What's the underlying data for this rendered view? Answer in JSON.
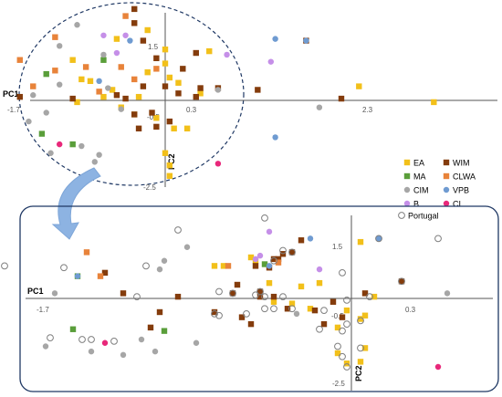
{
  "colors": {
    "EA": "#f2c01a",
    "WIM": "#843c0c",
    "MA": "#5a9e3a",
    "CLWA": "#e8833a",
    "CIM": "#a6a6a6",
    "VPB": "#6f9bd1",
    "B": "#c58fe8",
    "CI": "#e8287a",
    "Portugal": "#7f7f7f",
    "frame": "#1f3864",
    "arrow": "#8db3e2"
  },
  "chart_data": [
    {
      "type": "scatter",
      "xlabel": "PC1",
      "ylabel": "PC2",
      "x_ticks": [
        "-1.7",
        "0.3",
        "2.3"
      ],
      "y_ticks": [
        "1.5",
        "-0.5",
        "-2.5"
      ],
      "legend": {
        "position": "right",
        "entries": [
          {
            "key": "EA",
            "label": "EA",
            "shape": "square"
          },
          {
            "key": "WIM",
            "label": "WIM",
            "shape": "square"
          },
          {
            "key": "MA",
            "label": "MA",
            "shape": "square"
          },
          {
            "key": "CLWA",
            "label": "CLWA",
            "shape": "square"
          },
          {
            "key": "CIM",
            "label": "CIM",
            "shape": "circle"
          },
          {
            "key": "VPB",
            "label": "VPB",
            "shape": "circle"
          },
          {
            "key": "B",
            "label": "B",
            "shape": "circle"
          },
          {
            "key": "CI",
            "label": "CI",
            "shape": "circle"
          }
        ]
      },
      "series": [
        {
          "name": "EA",
          "shape": "square",
          "points": [
            [
              -0.2,
              2.0
            ],
            [
              -0.55,
              1.75
            ],
            [
              0.0,
              1.45
            ],
            [
              0.5,
              1.4
            ],
            [
              -1.05,
              1.15
            ],
            [
              -0.95,
              0.6
            ],
            [
              -0.85,
              0.55
            ],
            [
              -0.6,
              0.3
            ],
            [
              0.05,
              0.65
            ],
            [
              -0.3,
              0.1
            ],
            [
              0.4,
              0.2
            ],
            [
              -1.0,
              -0.05
            ],
            [
              -0.7,
              0.1
            ],
            [
              -0.5,
              -0.2
            ],
            [
              2.2,
              0.4
            ],
            [
              3.05,
              -0.05
            ],
            [
              -0.1,
              -0.5
            ],
            [
              0.0,
              -1.5
            ],
            [
              0.05,
              -1.85
            ],
            [
              0.05,
              -2.15
            ],
            [
              0.1,
              -0.8
            ],
            [
              0.0,
              1.05
            ],
            [
              -0.2,
              0.8
            ],
            [
              0.15,
              0.5
            ],
            [
              -0.35,
              -0.4
            ],
            [
              0.25,
              -0.8
            ]
          ]
        },
        {
          "name": "WIM",
          "shape": "square",
          "points": [
            [
              -0.35,
              2.6
            ],
            [
              -0.35,
              2.2
            ],
            [
              -0.25,
              1.7
            ],
            [
              0.35,
              1.35
            ],
            [
              -0.1,
              1.2
            ],
            [
              0.2,
              0.9
            ],
            [
              1.6,
              1.7
            ],
            [
              -1.65,
              0.1
            ],
            [
              -1.05,
              0.05
            ],
            [
              -0.55,
              0.15
            ],
            [
              -0.45,
              0.05
            ],
            [
              -0.35,
              -0.4
            ],
            [
              -0.15,
              -0.35
            ],
            [
              -0.1,
              -0.75
            ],
            [
              0.05,
              -0.6
            ],
            [
              0.15,
              0.2
            ],
            [
              0.35,
              0.1
            ],
            [
              0.4,
              0.35
            ],
            [
              1.05,
              0.3
            ],
            [
              2.0,
              0.05
            ],
            [
              0.6,
              0.35
            ],
            [
              -0.3,
              -0.8
            ],
            [
              0.0,
              0.4
            ],
            [
              -0.25,
              0.4
            ]
          ]
        },
        {
          "name": "MA",
          "shape": "square",
          "points": [
            [
              -0.7,
              1.15
            ],
            [
              -1.35,
              0.75
            ],
            [
              -1.4,
              -0.95
            ],
            [
              -1.05,
              -1.25
            ]
          ]
        },
        {
          "name": "CLWA",
          "shape": "square",
          "points": [
            [
              -0.45,
              2.4
            ],
            [
              -1.25,
              1.8
            ],
            [
              -1.65,
              1.15
            ],
            [
              -1.25,
              0.85
            ],
            [
              -0.9,
              0.95
            ],
            [
              -0.5,
              0.95
            ],
            [
              -0.1,
              0.9
            ],
            [
              -0.75,
              0.25
            ],
            [
              -1.5,
              0.4
            ],
            [
              -0.35,
              0.6
            ]
          ]
        },
        {
          "name": "CIM",
          "shape": "circle",
          "points": [
            [
              -1.0,
              2.15
            ],
            [
              -1.2,
              1.55
            ],
            [
              -0.7,
              1.3
            ],
            [
              -0.65,
              0.35
            ],
            [
              -1.2,
              0.45
            ],
            [
              -1.5,
              0.15
            ],
            [
              0.6,
              0.3
            ],
            [
              1.75,
              -0.2
            ],
            [
              -0.95,
              -1.3
            ],
            [
              -1.3,
              -1.5
            ],
            [
              -0.8,
              -1.75
            ],
            [
              -0.75,
              -1.55
            ],
            [
              -1.55,
              -0.6
            ],
            [
              -1.35,
              -0.35
            ],
            [
              -0.5,
              -0.25
            ]
          ]
        },
        {
          "name": "VPB",
          "shape": "circle",
          "points": [
            [
              -0.4,
              1.7
            ],
            [
              1.25,
              1.75
            ],
            [
              1.6,
              1.7
            ],
            [
              1.25,
              -1.05
            ],
            [
              -0.75,
              0.55
            ]
          ]
        },
        {
          "name": "B",
          "shape": "circle",
          "points": [
            [
              -0.7,
              1.85
            ],
            [
              -0.45,
              1.85
            ],
            [
              0.7,
              1.3
            ],
            [
              -0.55,
              1.35
            ],
            [
              1.2,
              1.1
            ]
          ]
        },
        {
          "name": "CI",
          "shape": "circle",
          "points": [
            [
              -1.2,
              -1.25
            ],
            [
              0.6,
              -1.8
            ]
          ]
        }
      ]
    },
    {
      "type": "scatter",
      "xlabel": "PC1",
      "ylabel": "PC2",
      "x_ticks": [
        "-1.7",
        "0.3"
      ],
      "y_ticks": [
        "1.5",
        "-0.5",
        "-2.5"
      ],
      "legend": {
        "position": "top-right",
        "entries": [
          {
            "key": "Portugal",
            "label": "Portugal",
            "shape": "open-circle"
          }
        ]
      },
      "series": [
        {
          "name": "EA",
          "shape": "square",
          "points": [
            [
              0.1,
              1.65
            ],
            [
              -1.1,
              1.2
            ],
            [
              -1.05,
              1.1
            ],
            [
              -1.5,
              0.95
            ],
            [
              -1.4,
              0.95
            ],
            [
              -0.35,
              0.45
            ],
            [
              -0.9,
              0.45
            ],
            [
              -0.55,
              0.35
            ],
            [
              -0.65,
              -0.15
            ],
            [
              -0.85,
              -0.1
            ],
            [
              -0.45,
              -0.3
            ],
            [
              -0.05,
              -0.35
            ],
            [
              0.15,
              -0.5
            ],
            [
              0.25,
              0.05
            ],
            [
              -0.15,
              -0.85
            ],
            [
              0.15,
              -1.45
            ],
            [
              -0.05,
              -1.9
            ],
            [
              0.1,
              -1.85
            ],
            [
              -0.15,
              -1.6
            ],
            [
              0.1,
              -0.6
            ]
          ]
        },
        {
          "name": "WIM",
          "shape": "square",
          "points": [
            [
              -0.55,
              1.7
            ],
            [
              -2.7,
              0.75
            ],
            [
              -2.5,
              0.15
            ],
            [
              -0.8,
              1.15
            ],
            [
              -1.05,
              0.95
            ],
            [
              -0.65,
              1.35
            ],
            [
              -0.75,
              1.3
            ],
            [
              -0.9,
              0.9
            ],
            [
              -0.85,
              1.15
            ],
            [
              -1.25,
              0.4
            ],
            [
              -1.3,
              0.15
            ],
            [
              -1.0,
              0.2
            ],
            [
              -1.0,
              0.05
            ],
            [
              -0.85,
              0.05
            ],
            [
              -1.5,
              -0.4
            ],
            [
              -1.2,
              -0.55
            ],
            [
              -1.1,
              -0.75
            ],
            [
              -0.7,
              -0.3
            ],
            [
              -0.4,
              -0.35
            ],
            [
              -0.3,
              -0.75
            ],
            [
              -0.1,
              -0.55
            ],
            [
              -0.2,
              -0.1
            ],
            [
              0.15,
              0.15
            ],
            [
              -1.9,
              0.05
            ],
            [
              -2.1,
              -0.4
            ],
            [
              -2.2,
              -0.85
            ],
            [
              0.55,
              0.5
            ]
          ]
        },
        {
          "name": "MA",
          "shape": "square",
          "points": [
            [
              -0.95,
              1.0
            ],
            [
              -3.0,
              0.65
            ],
            [
              -3.05,
              -0.9
            ],
            [
              -2.05,
              -0.95
            ]
          ]
        },
        {
          "name": "CLWA",
          "shape": "square",
          "points": [
            [
              -2.9,
              1.35
            ],
            [
              -2.75,
              0.65
            ],
            [
              -0.8,
              1.05
            ],
            [
              -1.35,
              0.95
            ]
          ]
        },
        {
          "name": "CIM",
          "shape": "circle",
          "points": [
            [
              -1.8,
              1.5
            ],
            [
              -2.05,
              1.1
            ],
            [
              -2.1,
              0.85
            ],
            [
              -2.5,
              -1.65
            ],
            [
              -2.15,
              -1.55
            ],
            [
              -2.3,
              -1.2
            ],
            [
              -0.6,
              -0.45
            ],
            [
              -1.7,
              -1.3
            ],
            [
              -3.25,
              0.15
            ],
            [
              1.05,
              0.15
            ],
            [
              -3.35,
              -1.4
            ],
            [
              -2.85,
              -1.55
            ]
          ]
        },
        {
          "name": "VPB",
          "shape": "circle",
          "points": [
            [
              -0.45,
              1.75
            ],
            [
              0.3,
              1.75
            ],
            [
              -3.0,
              0.65
            ],
            [
              -0.9,
              0.95
            ]
          ]
        },
        {
          "name": "B",
          "shape": "circle",
          "points": [
            [
              -0.9,
              1.95
            ],
            [
              -1.0,
              1.25
            ],
            [
              -1.05,
              1.15
            ],
            [
              -0.35,
              0.85
            ]
          ]
        },
        {
          "name": "CI",
          "shape": "circle",
          "points": [
            [
              -2.7,
              -1.3
            ],
            [
              0.95,
              -2.0
            ]
          ]
        },
        {
          "name": "Portugal",
          "shape": "open-circle",
          "points": [
            [
              -0.95,
              2.35
            ],
            [
              -1.9,
              2.0
            ],
            [
              0.3,
              1.75
            ],
            [
              0.95,
              1.75
            ],
            [
              -0.65,
              1.35
            ],
            [
              -0.75,
              1.4
            ],
            [
              -3.8,
              0.95
            ],
            [
              -0.85,
              1.1
            ],
            [
              -3.15,
              0.9
            ],
            [
              -2.25,
              0.95
            ],
            [
              -0.1,
              0.75
            ],
            [
              0.55,
              0.5
            ],
            [
              -2.35,
              0.05
            ],
            [
              -1.45,
              0.2
            ],
            [
              -1.3,
              0.15
            ],
            [
              -1.05,
              0.1
            ],
            [
              -0.95,
              0.05
            ],
            [
              -0.75,
              0.05
            ],
            [
              0.2,
              0.05
            ],
            [
              -0.05,
              -0.05
            ],
            [
              -1.5,
              -0.45
            ],
            [
              -1.45,
              -0.5
            ],
            [
              -1.15,
              -0.45
            ],
            [
              -0.95,
              -0.3
            ],
            [
              -0.85,
              -0.3
            ],
            [
              -0.65,
              -0.3
            ],
            [
              -0.3,
              -0.35
            ],
            [
              -0.05,
              -0.75
            ],
            [
              0.1,
              -0.65
            ],
            [
              -0.35,
              -0.9
            ],
            [
              -0.1,
              -0.95
            ],
            [
              -0.15,
              -1.4
            ],
            [
              0.1,
              -1.45
            ],
            [
              -0.1,
              -1.7
            ],
            [
              -0.05,
              -2.0
            ],
            [
              -2.6,
              -1.25
            ],
            [
              -3.3,
              -1.15
            ],
            [
              -2.85,
              -1.2
            ],
            [
              -2.95,
              -1.2
            ],
            [
              -1.0,
              0.2
            ]
          ]
        }
      ]
    }
  ]
}
